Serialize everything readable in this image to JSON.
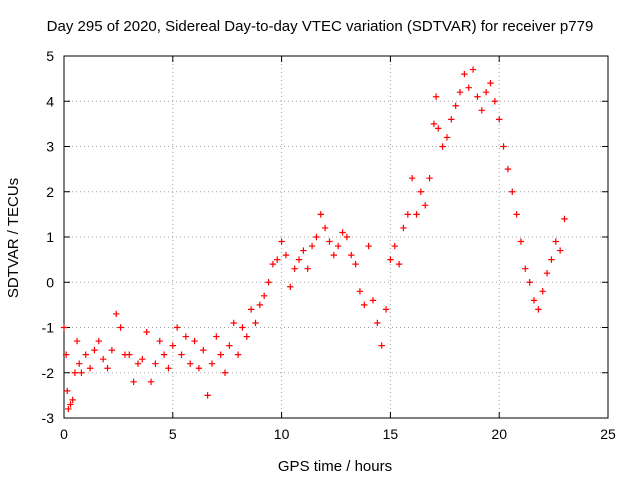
{
  "chart_data": {
    "type": "scatter",
    "title": "Day 295 of 2020, Sidereal Day-to-day VTEC variation (SDTVAR) for receiver p779",
    "xlabel": "GPS time / hours",
    "ylabel": "SDTVAR / TECUs",
    "xlim": [
      0,
      25
    ],
    "ylim": [
      -3,
      5
    ],
    "xticks": [
      0,
      5,
      10,
      15,
      20,
      25
    ],
    "yticks": [
      -3,
      -2,
      -1,
      0,
      1,
      2,
      3,
      4,
      5
    ],
    "grid": true,
    "marker": "plus",
    "color": "#ff0000",
    "series": [
      {
        "name": "SDTVAR",
        "points": [
          [
            0.0,
            -1.0
          ],
          [
            0.1,
            -1.6
          ],
          [
            0.15,
            -2.4
          ],
          [
            0.2,
            -2.8
          ],
          [
            0.3,
            -2.7
          ],
          [
            0.4,
            -2.6
          ],
          [
            0.5,
            -2.0
          ],
          [
            0.6,
            -1.3
          ],
          [
            0.7,
            -1.8
          ],
          [
            0.8,
            -2.0
          ],
          [
            1.0,
            -1.6
          ],
          [
            1.2,
            -1.9
          ],
          [
            1.4,
            -1.5
          ],
          [
            1.6,
            -1.3
          ],
          [
            1.8,
            -1.7
          ],
          [
            2.0,
            -1.9
          ],
          [
            2.2,
            -1.5
          ],
          [
            2.4,
            -0.7
          ],
          [
            2.6,
            -1.0
          ],
          [
            2.8,
            -1.6
          ],
          [
            3.0,
            -1.6
          ],
          [
            3.2,
            -2.2
          ],
          [
            3.4,
            -1.8
          ],
          [
            3.6,
            -1.7
          ],
          [
            3.8,
            -1.1
          ],
          [
            4.0,
            -2.2
          ],
          [
            4.2,
            -1.8
          ],
          [
            4.4,
            -1.3
          ],
          [
            4.6,
            -1.6
          ],
          [
            4.8,
            -1.9
          ],
          [
            5.0,
            -1.4
          ],
          [
            5.2,
            -1.0
          ],
          [
            5.4,
            -1.6
          ],
          [
            5.6,
            -1.2
          ],
          [
            5.8,
            -1.8
          ],
          [
            6.0,
            -1.3
          ],
          [
            6.2,
            -1.9
          ],
          [
            6.4,
            -1.5
          ],
          [
            6.6,
            -2.5
          ],
          [
            6.8,
            -1.8
          ],
          [
            7.0,
            -1.2
          ],
          [
            7.2,
            -1.6
          ],
          [
            7.4,
            -2.0
          ],
          [
            7.6,
            -1.4
          ],
          [
            7.8,
            -0.9
          ],
          [
            8.0,
            -1.6
          ],
          [
            8.2,
            -1.0
          ],
          [
            8.4,
            -1.2
          ],
          [
            8.6,
            -0.6
          ],
          [
            8.8,
            -0.9
          ],
          [
            9.0,
            -0.5
          ],
          [
            9.2,
            -0.3
          ],
          [
            9.4,
            0.0
          ],
          [
            9.6,
            0.4
          ],
          [
            9.8,
            0.5
          ],
          [
            10.0,
            0.9
          ],
          [
            10.2,
            0.6
          ],
          [
            10.4,
            -0.1
          ],
          [
            10.6,
            0.3
          ],
          [
            10.8,
            0.5
          ],
          [
            11.0,
            0.7
          ],
          [
            11.2,
            0.3
          ],
          [
            11.4,
            0.8
          ],
          [
            11.6,
            1.0
          ],
          [
            11.8,
            1.5
          ],
          [
            12.0,
            1.2
          ],
          [
            12.2,
            0.9
          ],
          [
            12.4,
            0.6
          ],
          [
            12.6,
            0.8
          ],
          [
            12.8,
            1.1
          ],
          [
            13.0,
            1.0
          ],
          [
            13.2,
            0.6
          ],
          [
            13.4,
            0.4
          ],
          [
            13.6,
            -0.2
          ],
          [
            13.8,
            -0.5
          ],
          [
            14.0,
            0.8
          ],
          [
            14.2,
            -0.4
          ],
          [
            14.4,
            -0.9
          ],
          [
            14.6,
            -1.4
          ],
          [
            14.8,
            -0.6
          ],
          [
            15.0,
            0.5
          ],
          [
            15.2,
            0.8
          ],
          [
            15.4,
            0.4
          ],
          [
            15.6,
            1.2
          ],
          [
            15.8,
            1.5
          ],
          [
            16.0,
            2.3
          ],
          [
            16.2,
            1.5
          ],
          [
            16.4,
            2.0
          ],
          [
            16.6,
            1.7
          ],
          [
            16.8,
            2.3
          ],
          [
            17.0,
            3.5
          ],
          [
            17.1,
            4.1
          ],
          [
            17.2,
            3.4
          ],
          [
            17.4,
            3.0
          ],
          [
            17.6,
            3.2
          ],
          [
            17.8,
            3.6
          ],
          [
            18.0,
            3.9
          ],
          [
            18.2,
            4.2
          ],
          [
            18.4,
            4.6
          ],
          [
            18.6,
            4.3
          ],
          [
            18.8,
            4.7
          ],
          [
            19.0,
            4.1
          ],
          [
            19.2,
            3.8
          ],
          [
            19.4,
            4.2
          ],
          [
            19.6,
            4.4
          ],
          [
            19.8,
            4.0
          ],
          [
            20.0,
            3.6
          ],
          [
            20.2,
            3.0
          ],
          [
            20.4,
            2.5
          ],
          [
            20.6,
            2.0
          ],
          [
            20.8,
            1.5
          ],
          [
            21.0,
            0.9
          ],
          [
            21.2,
            0.3
          ],
          [
            21.4,
            0.0
          ],
          [
            21.6,
            -0.4
          ],
          [
            21.8,
            -0.6
          ],
          [
            22.0,
            -0.2
          ],
          [
            22.2,
            0.2
          ],
          [
            22.4,
            0.5
          ],
          [
            22.6,
            0.9
          ],
          [
            22.8,
            0.7
          ],
          [
            23.0,
            1.4
          ]
        ]
      }
    ]
  }
}
